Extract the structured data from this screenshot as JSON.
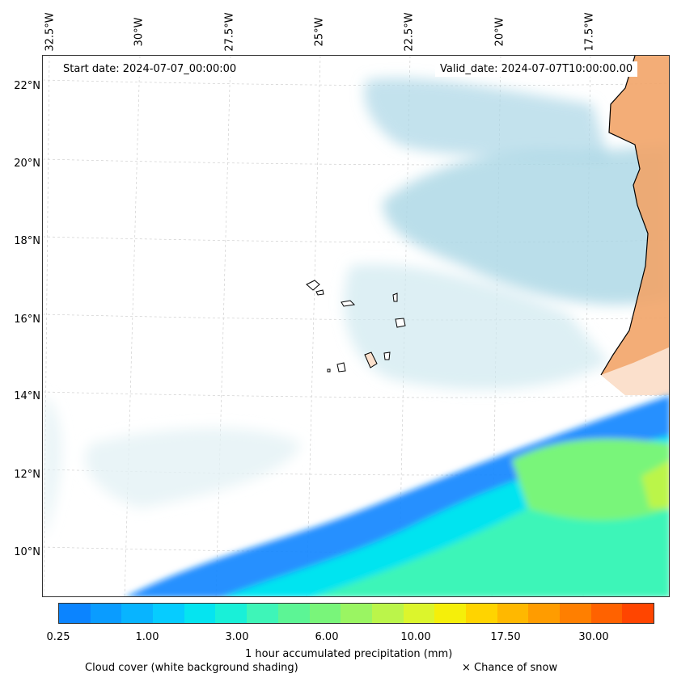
{
  "map": {
    "lon_labels": [
      "32.5°W",
      "30°W",
      "27.5°W",
      "25°W",
      "22.5°W",
      "20°W",
      "17.5°W"
    ],
    "lat_labels": [
      "22°N",
      "20°N",
      "18°N",
      "16°N",
      "14°N",
      "12°N",
      "10°N"
    ],
    "start_date": "Start date: 2024-07-07_00:00:00",
    "valid_date": "Valid_date: 2024-07-07T10:00:00.00",
    "colors": {
      "land": "#f2a468",
      "cloud": "#a9d6e5",
      "coast": "#000000"
    }
  },
  "colorbar": {
    "colors": [
      "#0b84ff",
      "#0a9cff",
      "#08b4ff",
      "#06ccff",
      "#05e4f0",
      "#19f0d8",
      "#3ef5b8",
      "#5cf595",
      "#79f57a",
      "#9af562",
      "#bbf54a",
      "#dcf52c",
      "#f5ef0a",
      "#ffd400",
      "#ffb800",
      "#ff9c00",
      "#ff7f00",
      "#ff6200",
      "#ff4500"
    ],
    "ticks": [
      "0.25",
      "1.00",
      "3.00",
      "6.00",
      "10.00",
      "17.50",
      "30.00"
    ],
    "label": "1 hour accumulated precipitation (mm)"
  },
  "captions": {
    "cloud": "Cloud cover (white background shading)",
    "snow": "× Chance of snow"
  }
}
